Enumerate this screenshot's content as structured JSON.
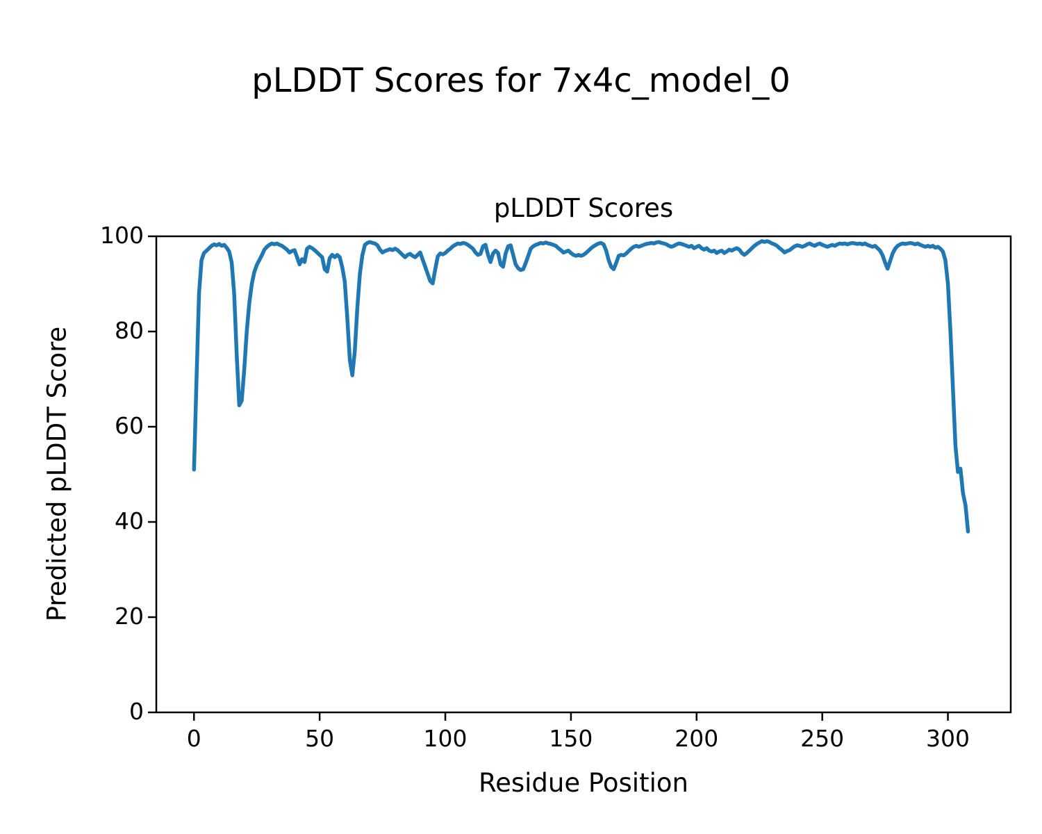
{
  "figure": {
    "title": "pLDDT Scores for 7x4c_model_0"
  },
  "chart_data": {
    "type": "line",
    "title": "pLDDT Scores",
    "xlabel": "Residue Position",
    "ylabel": "Predicted pLDDT Score",
    "xlim": [
      -15,
      325
    ],
    "ylim": [
      0,
      100
    ],
    "xticks": [
      0,
      50,
      100,
      150,
      200,
      250,
      300
    ],
    "yticks": [
      0,
      20,
      40,
      60,
      80,
      100
    ],
    "grid": false,
    "legend": "none",
    "line_color": "#1f77b4",
    "line_width": 5.5,
    "series": [
      {
        "name": "pLDDT",
        "x0": 0,
        "dx": 1,
        "y": [
          51,
          70,
          88,
          95,
          96.5,
          97,
          97.5,
          98,
          98.3,
          98.1,
          98.4,
          98,
          98.2,
          97.6,
          96.8,
          94.5,
          88,
          75,
          64.5,
          65.5,
          72,
          80,
          86,
          90,
          92.5,
          94,
          95,
          96,
          97.2,
          97.8,
          98.2,
          98.5,
          98.3,
          98.5,
          98.2,
          98,
          97.6,
          97.2,
          96.6,
          96.9,
          97.1,
          95.6,
          94.1,
          95.2,
          94.6,
          97.4,
          97.8,
          97.5,
          97.1,
          96.6,
          96.1,
          95.6,
          93.1,
          92.6,
          95.4,
          96.1,
          95.6,
          96.1,
          95.6,
          93.5,
          90.5,
          83,
          74,
          70.8,
          76,
          85,
          92,
          96,
          98.2,
          98.6,
          98.8,
          98.6,
          98.5,
          98.1,
          97.2,
          96.6,
          96.9,
          97.1,
          97.3,
          97.1,
          97.4,
          97.1,
          96.6,
          96.1,
          95.6,
          96.1,
          96.3,
          95.9,
          95.6,
          96.1,
          96.6,
          95.1,
          93.6,
          92.1,
          90.6,
          90.1,
          93.1,
          95.8,
          96.4,
          96.2,
          96.5,
          97,
          97.4,
          97.9,
          98.2,
          98.5,
          98.4,
          98.6,
          98.5,
          98.2,
          97.8,
          97.4,
          96.6,
          96.1,
          96.3,
          97.9,
          98.2,
          96.1,
          94.6,
          96.4,
          97,
          96.5,
          94.1,
          93.6,
          96.4,
          97.9,
          98.1,
          96.1,
          94.1,
          93.3,
          92.9,
          93.1,
          94.4,
          95.9,
          97.4,
          97.9,
          98.2,
          98.4,
          98.6,
          98.5,
          98.7,
          98.5,
          98.4,
          98.2,
          98,
          97.5,
          97.1,
          96.6,
          96.8,
          97,
          96.5,
          96.1,
          95.9,
          96.1,
          95.9,
          96.1,
          96.5,
          97,
          97.5,
          97.9,
          98.2,
          98.5,
          98.6,
          98.3,
          97,
          95,
          93.6,
          93.1,
          94.4,
          95.9,
          96.1,
          96,
          96.4,
          96.9,
          97.4,
          97.8,
          98,
          97.8,
          98,
          98.2,
          98.4,
          98.5,
          98.6,
          98.5,
          98.7,
          98.8,
          98.6,
          98.5,
          98.3,
          98,
          97.8,
          98,
          98.3,
          98.5,
          98.4,
          98.2,
          98,
          97.8,
          98,
          97.5,
          97.8,
          98,
          97.5,
          97.2,
          97.5,
          97,
          96.8,
          97,
          96.5,
          96.8,
          97,
          96.5,
          96.8,
          97.2,
          97,
          97.3,
          97.5,
          97.2,
          96.5,
          96.1,
          96.5,
          97,
          97.5,
          98,
          98.4,
          98.7,
          99,
          98.8,
          99,
          98.8,
          98.5,
          98.3,
          98,
          97.5,
          97.1,
          96.6,
          96.9,
          97.1,
          97.5,
          97.9,
          98.1,
          98,
          97.8,
          98,
          98.3,
          98.5,
          98.2,
          98,
          98.3,
          98.5,
          98.2,
          98,
          97.8,
          98,
          98.2,
          98,
          98.3,
          98.5,
          98.4,
          98.5,
          98.3,
          98.5,
          98.6,
          98.5,
          98.4,
          98.5,
          98.3,
          98.5,
          98.2,
          98,
          97.8,
          98,
          97.5,
          97,
          96,
          94.5,
          93.2,
          94.8,
          96.4,
          97.4,
          98,
          98.3,
          98.5,
          98.4,
          98.5,
          98.6,
          98.5,
          98.3,
          98.5,
          98.2,
          98,
          97.8,
          98,
          97.8,
          98,
          97.6,
          97.8,
          97.4,
          96.8,
          95,
          90,
          80,
          68,
          56,
          50.5,
          51.2,
          46,
          43.5,
          38
        ]
      }
    ]
  }
}
